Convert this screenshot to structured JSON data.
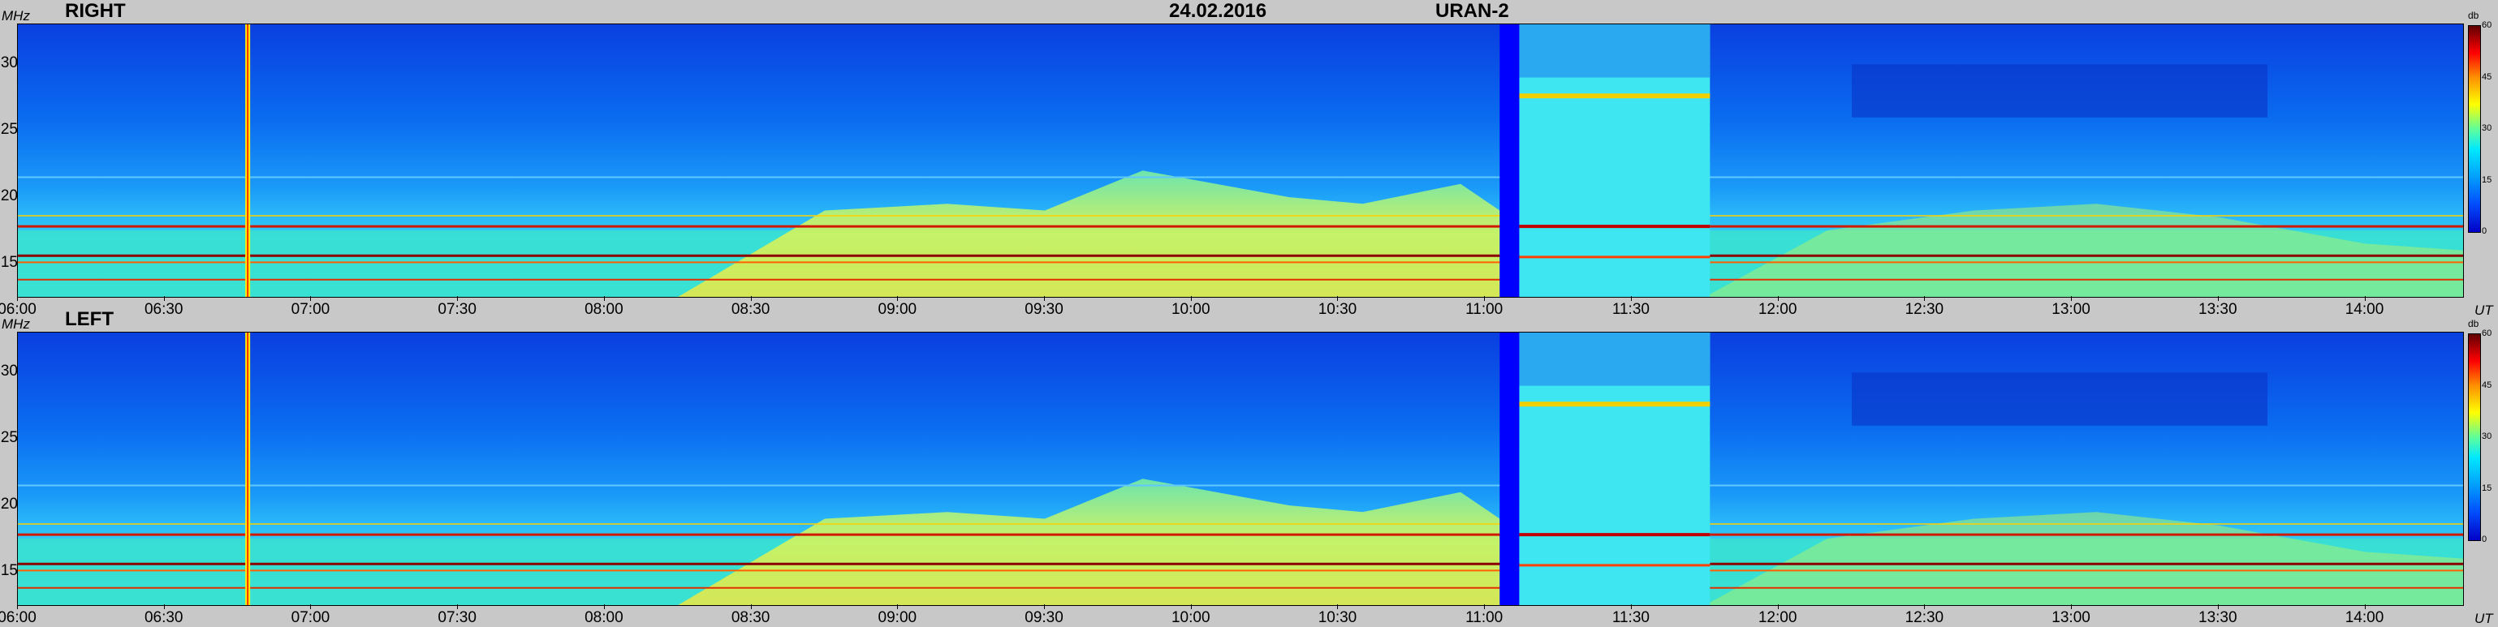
{
  "header": {
    "date": "24.02.2016",
    "instrument": "URAN-2"
  },
  "chart_data": [
    {
      "type": "heatmap",
      "title": "RIGHT",
      "y_unit": "MHz",
      "x_unit": "UT",
      "x_ticks": [
        "06:00",
        "06:30",
        "07:00",
        "07:30",
        "08:00",
        "08:30",
        "09:00",
        "09:30",
        "10:00",
        "10:30",
        "11:00",
        "11:30",
        "12:00",
        "12:30",
        "13:00",
        "13:30",
        "14:00"
      ],
      "y_ticks": [
        "30",
        "25",
        "20",
        "15"
      ],
      "xlim": [
        "06:00",
        "14:20"
      ],
      "ylim": [
        12.5,
        33
      ],
      "colorbar": {
        "label": "db",
        "ticks": [
          "60",
          "45",
          "30",
          "15",
          "0"
        ],
        "range": [
          0,
          60
        ]
      },
      "data_gap": [
        "11:03",
        "11:07"
      ]
    },
    {
      "type": "heatmap",
      "title": "LEFT",
      "y_unit": "MHz",
      "x_unit": "UT",
      "x_ticks": [
        "06:00",
        "06:30",
        "07:00",
        "07:30",
        "08:00",
        "08:30",
        "09:00",
        "09:30",
        "10:00",
        "10:30",
        "11:00",
        "11:30",
        "12:00",
        "12:30",
        "13:00",
        "13:30",
        "14:00"
      ],
      "y_ticks": [
        "30",
        "25",
        "20",
        "15"
      ],
      "xlim": [
        "06:00",
        "14:20"
      ],
      "ylim": [
        12.5,
        33
      ],
      "colorbar": {
        "label": "db",
        "ticks": [
          "60",
          "45",
          "30",
          "15",
          "0"
        ],
        "range": [
          0,
          60
        ]
      },
      "data_gap": [
        "11:03",
        "11:07"
      ]
    }
  ]
}
